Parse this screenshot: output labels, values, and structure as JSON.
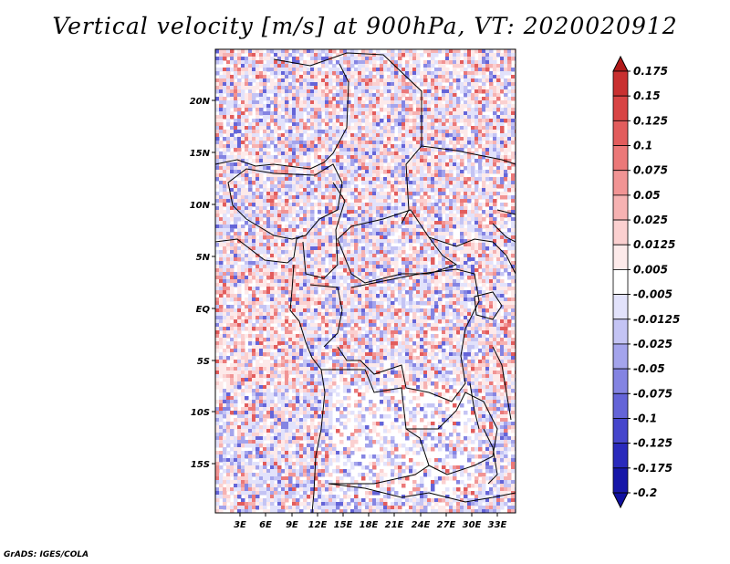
{
  "title": "Vertical velocity [m/s] at 900hPa, VT: 2020020912",
  "credit": "GrADS: IGES/COLA",
  "map": {
    "lat_labels": [
      "20N",
      "15N",
      "10N",
      "5N",
      "EQ",
      "5S",
      "10S",
      "15S"
    ],
    "lon_labels": [
      "3E",
      "6E",
      "9E",
      "12E",
      "15E",
      "18E",
      "21E",
      "24E",
      "27E",
      "30E",
      "33E"
    ]
  },
  "colorbar": {
    "levels": [
      "0.175",
      "0.15",
      "0.125",
      "0.1",
      "0.075",
      "0.05",
      "0.025",
      "0.0125",
      "0.005",
      "-0.005",
      "-0.0125",
      "-0.025",
      "-0.05",
      "-0.075",
      "-0.1",
      "-0.125",
      "-0.175",
      "-0.2"
    ],
    "colors": [
      "#b11a1a",
      "#c93030",
      "#d84444",
      "#e25c5c",
      "#eb7878",
      "#f19494",
      "#f6b2b2",
      "#fbd0d0",
      "#fdeaea",
      "#ffffff",
      "#e2e2fb",
      "#c4c4f4",
      "#a4a4ec",
      "#8484e2",
      "#6464d8",
      "#4646cc",
      "#2a2abc",
      "#1717a8",
      "#1010a0"
    ]
  }
}
